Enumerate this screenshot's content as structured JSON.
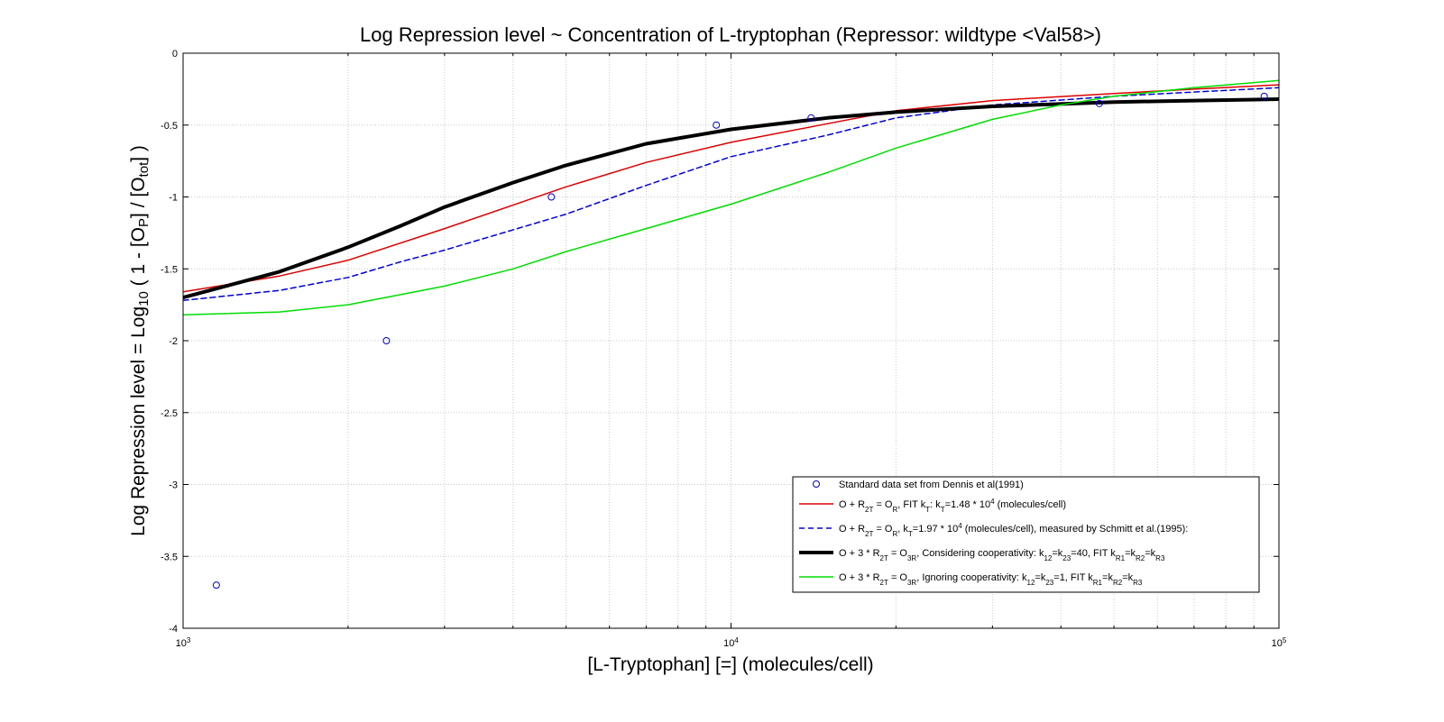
{
  "chart_data": {
    "type": "line",
    "title": "Log Repression level ~ Concentration of L-tryptophan (Repressor: wildtype <Val58>)",
    "xlabel": "[L-Tryptophan] [=] (molecules/cell)",
    "ylabel": {
      "prefix": "Log Repression level = Log",
      "base": "10",
      "mid1": " ( 1 - [O",
      "sub1": "P",
      "mid2": "] / [O",
      "sub2": "tot",
      "suffix": "] )"
    },
    "xscale": "log",
    "xlim": [
      1000,
      100000
    ],
    "ylim": [
      -4,
      0
    ],
    "grid": true,
    "x_ticks": [
      {
        "value": 1000,
        "base": "10",
        "exp": "3"
      },
      {
        "value": 10000,
        "base": "10",
        "exp": "4"
      },
      {
        "value": 100000,
        "base": "10",
        "exp": "5"
      }
    ],
    "y_ticks": [
      {
        "value": 0,
        "label": "0"
      },
      {
        "value": -0.5,
        "label": "-0.5"
      },
      {
        "value": -1,
        "label": "-1"
      },
      {
        "value": -1.5,
        "label": "-1.5"
      },
      {
        "value": -2,
        "label": "-2"
      },
      {
        "value": -2.5,
        "label": "-2.5"
      },
      {
        "value": -3,
        "label": "-3"
      },
      {
        "value": -3.5,
        "label": "-3.5"
      },
      {
        "value": -4,
        "label": "-4"
      }
    ],
    "legend_position": "bottom-right",
    "scatter": {
      "name": "Standard data set from Dennis et al(1991)",
      "color": "#0000cc",
      "x": [
        1150,
        2350,
        4700,
        9400,
        14000,
        47000,
        94000
      ],
      "y": [
        -3.7,
        -2.0,
        -1.0,
        -0.5,
        -0.45,
        -0.35,
        -0.3
      ]
    },
    "series": [
      {
        "name": "O + R2T = OR, FIT kT: kT=1.48 * 10^4 (molecules/cell)",
        "color": "#dd0000",
        "width": 1.5,
        "dash": "",
        "x": [
          1000,
          1500,
          2000,
          3000,
          5000,
          7000,
          10000,
          15000,
          20000,
          30000,
          50000,
          70000,
          100000
        ],
        "y": [
          -1.66,
          -1.55,
          -1.44,
          -1.22,
          -0.93,
          -0.76,
          -0.62,
          -0.49,
          -0.4,
          -0.33,
          -0.28,
          -0.25,
          -0.22
        ]
      },
      {
        "name": "O + R2T = OR, kT=1.97 * 10^4 (molecules/cell), measured by Schmitt et al.(1995):",
        "color": "#0000dd",
        "width": 1.5,
        "dash": "6,4",
        "x": [
          1000,
          1500,
          2000,
          2500,
          3000,
          5000,
          7000,
          10000,
          15000,
          20000,
          30000,
          50000,
          70000,
          100000
        ],
        "y": [
          -1.72,
          -1.65,
          -1.56,
          -1.45,
          -1.37,
          -1.12,
          -0.92,
          -0.72,
          -0.57,
          -0.45,
          -0.36,
          -0.3,
          -0.27,
          -0.24
        ]
      },
      {
        "name": "O + 3 * R2T = O3R, Considering cooperativity: k12=k23=40, FIT kR1=kR2=kR3",
        "color": "#000000",
        "width": 4,
        "dash": "",
        "x": [
          1000,
          1500,
          2000,
          2500,
          3000,
          4000,
          5000,
          7000,
          10000,
          15000,
          20000,
          30000,
          50000,
          70000,
          100000
        ],
        "y": [
          -1.7,
          -1.52,
          -1.35,
          -1.2,
          -1.07,
          -0.9,
          -0.78,
          -0.63,
          -0.53,
          -0.45,
          -0.41,
          -0.37,
          -0.34,
          -0.33,
          -0.32
        ]
      },
      {
        "name": "O + 3 * R2T = O3R, Ignoring cooperativity: k12=k23=1, FIT kR1=kR2=kR3",
        "color": "#00dd00",
        "width": 1.5,
        "dash": "",
        "x": [
          1000,
          1500,
          2000,
          3000,
          4000,
          5000,
          7000,
          10000,
          15000,
          20000,
          30000,
          40000,
          50000,
          70000,
          100000
        ],
        "y": [
          -1.82,
          -1.8,
          -1.75,
          -1.62,
          -1.5,
          -1.38,
          -1.22,
          -1.05,
          -0.83,
          -0.66,
          -0.46,
          -0.36,
          -0.3,
          -0.24,
          -0.19
        ]
      }
    ],
    "legend": [
      {
        "kind": "marker",
        "color": "#0000cc",
        "parts": [
          [
            "t",
            "Standard data set from Dennis et al(1991)"
          ]
        ]
      },
      {
        "kind": "line",
        "color": "#dd0000",
        "width": 1.5,
        "dash": "",
        "parts": [
          [
            "t",
            "O + R"
          ],
          [
            "sub",
            "2T"
          ],
          [
            "t",
            " = O"
          ],
          [
            "sub",
            "R"
          ],
          [
            "t",
            ", FIT k"
          ],
          [
            "sub",
            "T"
          ],
          [
            "t",
            ": k"
          ],
          [
            "sub",
            "T"
          ],
          [
            "t",
            "=1.48 * 10"
          ],
          [
            "sup",
            "4"
          ],
          [
            "t",
            " (molecules/cell)"
          ]
        ]
      },
      {
        "kind": "line",
        "color": "#0000dd",
        "width": 1.5,
        "dash": "6,4",
        "parts": [
          [
            "t",
            "O + R"
          ],
          [
            "sub",
            "2T"
          ],
          [
            "t",
            " = O"
          ],
          [
            "sub",
            "R"
          ],
          [
            "t",
            ",  k"
          ],
          [
            "sub",
            "T"
          ],
          [
            "t",
            "=1.97 * 10"
          ],
          [
            "sup",
            "4"
          ],
          [
            "t",
            " (molecules/cell), measured by Schmitt et al.(1995):"
          ]
        ]
      },
      {
        "kind": "line",
        "color": "#000000",
        "width": 4,
        "dash": "",
        "parts": [
          [
            "t",
            "O + 3 * R"
          ],
          [
            "sub",
            "2T"
          ],
          [
            "t",
            " = O"
          ],
          [
            "sub",
            "3R"
          ],
          [
            "t",
            ", Considering cooperativity: k"
          ],
          [
            "sub",
            "12"
          ],
          [
            "t",
            "=k"
          ],
          [
            "sub",
            "23"
          ],
          [
            "t",
            "=40, FIT k"
          ],
          [
            "sub",
            "R1"
          ],
          [
            "t",
            "=k"
          ],
          [
            "sub",
            "R2"
          ],
          [
            "t",
            "=k"
          ],
          [
            "sub",
            "R3"
          ]
        ]
      },
      {
        "kind": "line",
        "color": "#00dd00",
        "width": 1.5,
        "dash": "",
        "parts": [
          [
            "t",
            "O + 3 * R"
          ],
          [
            "sub",
            "2T"
          ],
          [
            "t",
            " = O"
          ],
          [
            "sub",
            "3R"
          ],
          [
            "t",
            ", Ignoring cooperativity: k"
          ],
          [
            "sub",
            "12"
          ],
          [
            "t",
            "=k"
          ],
          [
            "sub",
            "23"
          ],
          [
            "t",
            "=1, FIT k"
          ],
          [
            "sub",
            "R1"
          ],
          [
            "t",
            "=k"
          ],
          [
            "sub",
            "R2"
          ],
          [
            "t",
            "=k"
          ],
          [
            "sub",
            "R3"
          ]
        ]
      }
    ]
  }
}
